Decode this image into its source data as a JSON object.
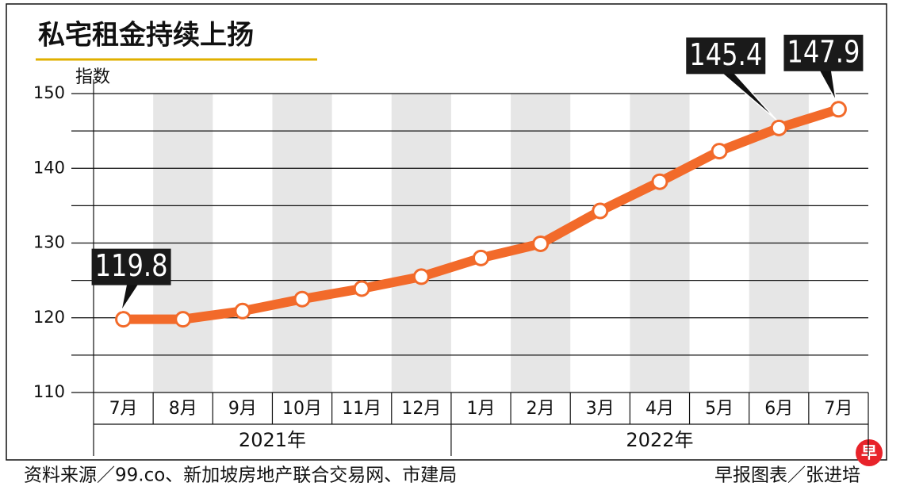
{
  "chart_data": {
    "type": "line",
    "title": "私宅租金持续上扬",
    "y_label": "指数",
    "categories": [
      "7月",
      "8月",
      "9月",
      "10月",
      "11月",
      "12月",
      "1月",
      "2月",
      "3月",
      "4月",
      "5月",
      "6月",
      "7月"
    ],
    "year_groups": [
      {
        "label": "2021年",
        "count": 6
      },
      {
        "label": "2022年",
        "count": 7
      }
    ],
    "values": [
      119.8,
      119.8,
      120.9,
      122.5,
      123.9,
      125.5,
      128.0,
      129.9,
      134.3,
      138.2,
      142.3,
      145.4,
      147.9
    ],
    "value_labels": [
      "119.8",
      null,
      null,
      null,
      null,
      null,
      null,
      null,
      null,
      null,
      null,
      "145.4",
      "147.9"
    ],
    "color": "#f26a2a",
    "ylim": [
      110,
      150
    ],
    "yticks": [
      110,
      120,
      130,
      140,
      150
    ],
    "minor_yticks": [
      115,
      125,
      135,
      145
    ],
    "grid": true,
    "source": "资料来源／99.co、新加坡房地产联合交易网、市建局",
    "credit": "早报图表／张进培",
    "logo": "早"
  }
}
